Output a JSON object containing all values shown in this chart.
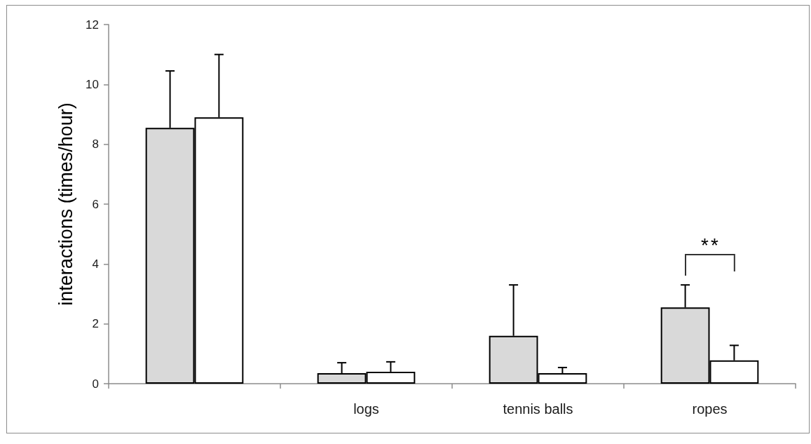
{
  "chart_data": {
    "type": "bar",
    "ylabel": "interactions (times/hour)",
    "categories": [
      null,
      "logs",
      "tennis balls",
      "ropes"
    ],
    "series": [
      {
        "color": "#d9d9d9",
        "values": [
          8.55,
          0.35,
          1.6,
          2.55
        ],
        "errors": [
          [
            8.55,
            10.45
          ],
          [
            0.35,
            0.7
          ],
          [
            1.6,
            3.3
          ],
          [
            2.55,
            3.3
          ]
        ]
      },
      {
        "color": "#ffffff",
        "values": [
          8.9,
          0.4,
          0.35,
          0.78
        ],
        "errors": [
          [
            8.9,
            11.0
          ],
          [
            0.4,
            0.73
          ],
          [
            0.35,
            0.54
          ],
          [
            0.78,
            1.28
          ]
        ]
      }
    ],
    "ylim": [
      0,
      12
    ],
    "yticks": [
      0,
      2,
      4,
      6,
      8,
      10,
      12
    ],
    "annotations": [
      "**"
    ]
  }
}
